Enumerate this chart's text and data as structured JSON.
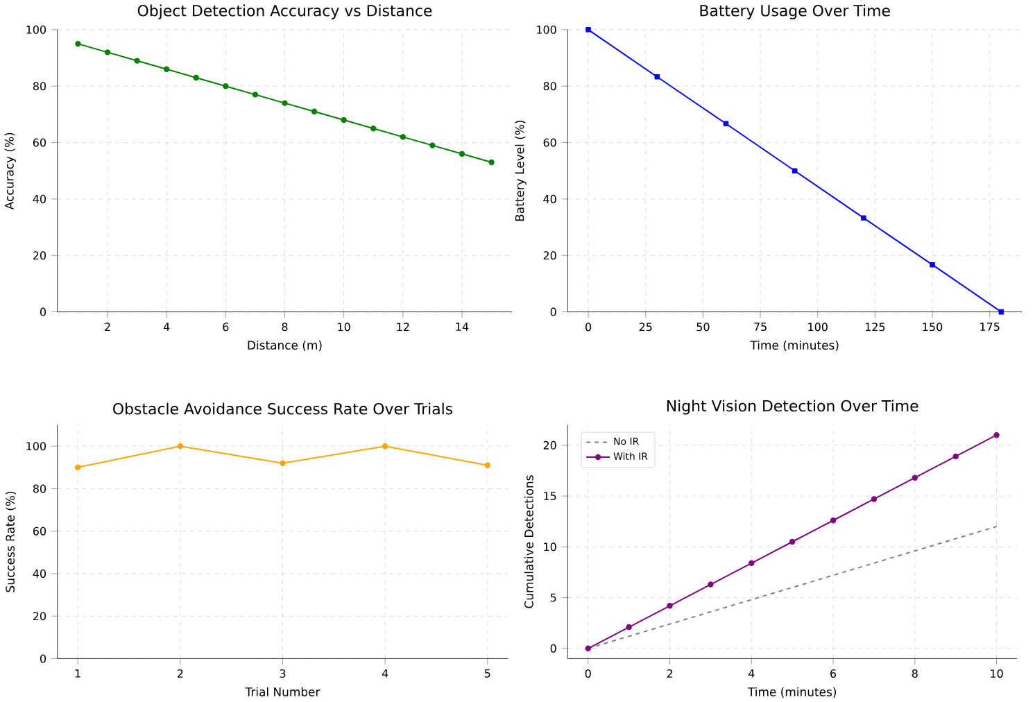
{
  "chart_data": [
    {
      "type": "line",
      "title": "Object Detection Accuracy vs Distance",
      "xlabel": "Distance (m)",
      "ylabel": "Accuracy (%)",
      "x": [
        1,
        2,
        3,
        4,
        5,
        6,
        7,
        8,
        9,
        10,
        11,
        12,
        13,
        14,
        15
      ],
      "series": [
        {
          "color": "#008000",
          "values": [
            95,
            92,
            89,
            86,
            83,
            80,
            77,
            74,
            71,
            68,
            65,
            62,
            59,
            56,
            53
          ]
        }
      ],
      "marker": "circle",
      "xlim": [
        0.3,
        15.7
      ],
      "ylim": [
        0,
        100
      ],
      "xticks": [
        2,
        4,
        6,
        8,
        10,
        12,
        14
      ],
      "yticks": [
        0,
        20,
        40,
        60,
        80,
        100
      ],
      "grid": true
    },
    {
      "type": "line",
      "title": "Battery Usage Over Time",
      "xlabel": "Time (minutes)",
      "ylabel": "Battery Level (%)",
      "x": [
        0,
        30,
        60,
        90,
        120,
        150,
        180
      ],
      "series": [
        {
          "color": "#0000ff",
          "values": [
            100,
            83.3,
            66.7,
            50,
            33.3,
            16.7,
            0
          ]
        }
      ],
      "marker": "square",
      "xlim": [
        -9,
        189
      ],
      "ylim": [
        0,
        100
      ],
      "xticks": [
        0,
        25,
        50,
        75,
        100,
        125,
        150,
        175
      ],
      "yticks": [
        0,
        20,
        40,
        60,
        80,
        100
      ],
      "grid": true
    },
    {
      "type": "line",
      "title": "Obstacle Avoidance Success Rate Over Trials",
      "xlabel": "Trial Number",
      "ylabel": "Success Rate (%)",
      "x": [
        1,
        2,
        3,
        4,
        5
      ],
      "series": [
        {
          "color": "#ffa500",
          "values": [
            90,
            100,
            92,
            100,
            91
          ]
        }
      ],
      "marker": "circle",
      "xlim": [
        0.8,
        5.2
      ],
      "ylim": [
        0,
        110
      ],
      "xticks": [
        1,
        2,
        3,
        4,
        5
      ],
      "yticks": [
        0,
        20,
        40,
        60,
        80,
        100
      ],
      "grid": true
    },
    {
      "type": "line",
      "title": "Night Vision Detection Over Time",
      "xlabel": "Time (minutes)",
      "ylabel": "Cumulative Detections",
      "x": [
        0,
        1,
        2,
        3,
        4,
        5,
        6,
        7,
        8,
        9,
        10
      ],
      "series": [
        {
          "name": "No IR",
          "color": "#808080",
          "x": [
            0,
            10
          ],
          "values": [
            0,
            12
          ],
          "line_style": "dashed",
          "marker": "none"
        },
        {
          "name": "With IR",
          "color": "#800080",
          "values": [
            0,
            2.1,
            4.2,
            6.3,
            8.4,
            10.5,
            12.6,
            14.7,
            16.8,
            18.9,
            21
          ],
          "marker": "circle"
        }
      ],
      "legend": "top left",
      "xlim": [
        -0.5,
        10.5
      ],
      "ylim": [
        -1,
        22
      ],
      "xticks": [
        0,
        2,
        4,
        6,
        8,
        10
      ],
      "yticks": [
        0,
        5,
        10,
        15,
        20
      ],
      "grid": true
    }
  ]
}
